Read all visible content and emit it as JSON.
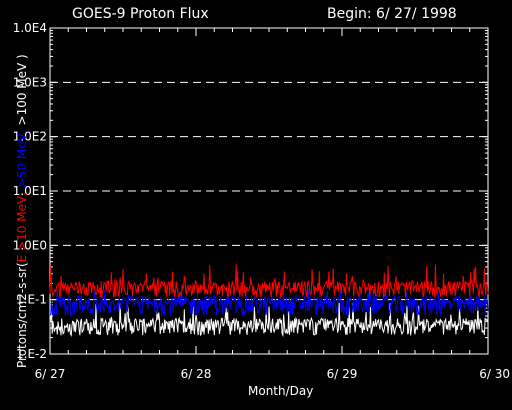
{
  "chart_data": {
    "type": "line",
    "title": "GOES-9 Proton Flux",
    "begin_label": "Begin: 6/ 27/ 1998",
    "xlabel": "Month/Day",
    "ylabel_parts": [
      {
        "text": "Protons/cm2-s-sr(",
        "color": "#ffffff"
      },
      {
        "text": "E >10 MeV, ",
        "color": "#ff0000"
      },
      {
        "text": ">50 MeV, ",
        "color": "#0000ff"
      },
      {
        "text": ">100 MeV )",
        "color": "#ffffff"
      }
    ],
    "y_scale": "log",
    "ylim": [
      0.01,
      10000
    ],
    "y_ticks": [
      {
        "value": 10000,
        "label": "1.0E4"
      },
      {
        "value": 1000,
        "label": "1.0E3"
      },
      {
        "value": 100,
        "label": "1.0E2"
      },
      {
        "value": 10,
        "label": "1.0E1"
      },
      {
        "value": 1,
        "label": "1.0E0"
      },
      {
        "value": 0.1,
        "label": "1.E-1"
      },
      {
        "value": 0.01,
        "label": "1.E-2"
      }
    ],
    "x_ticks": [
      "6/ 27",
      "6/ 28",
      "6/ 29",
      "6/ 30"
    ],
    "xlim_days": [
      0,
      3
    ],
    "grid": "dashed horizontal at each decade",
    "series": [
      {
        "name": ">10 MeV",
        "color": "#ff0000",
        "typical": 0.17,
        "min": 0.11,
        "max": 0.45
      },
      {
        "name": ">50 MeV",
        "color": "#0000ff",
        "typical": 0.09,
        "min": 0.05,
        "max": 0.16
      },
      {
        "name": ">100 MeV",
        "color": "#ffffff",
        "typical": 0.035,
        "min": 0.022,
        "max": 0.09
      }
    ]
  }
}
